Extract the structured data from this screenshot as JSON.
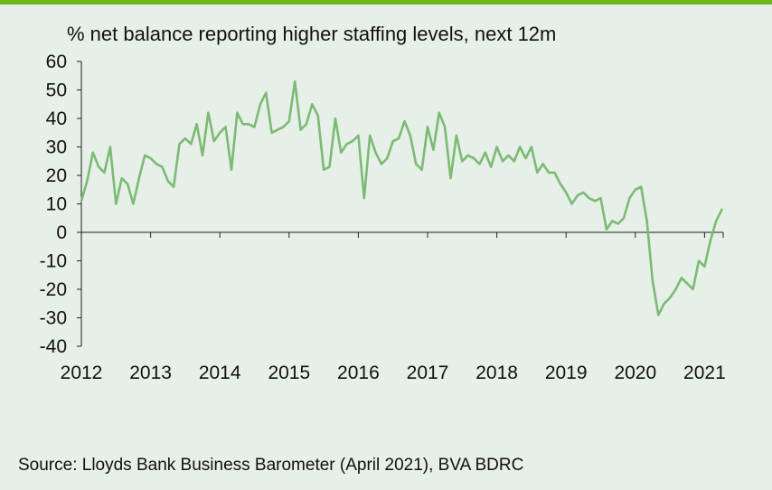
{
  "title": "% net balance reporting higher staffing levels, next 12m",
  "source": "Source: Lloyds Bank Business Barometer (April 2021), BVA BDRC",
  "colors": {
    "line": "#7cbb74",
    "accent_bar": "#6fb51d",
    "background": "#e6efe8",
    "axis": "#222222"
  },
  "chart_data": {
    "type": "line",
    "title": "% net balance reporting higher staffing levels, next 12m",
    "xlabel": "",
    "ylabel": "",
    "ylim": [
      -40,
      60
    ],
    "xlim": [
      "2012-01",
      "2021-05"
    ],
    "grid": false,
    "legend": "none",
    "y_ticks": [
      -40,
      -30,
      -20,
      -10,
      0,
      10,
      20,
      30,
      40,
      50,
      60
    ],
    "x_ticks": [
      "2012",
      "2013",
      "2014",
      "2015",
      "2016",
      "2017",
      "2018",
      "2019",
      "2020",
      "2021"
    ],
    "series": [
      {
        "x": [
          "2012-01",
          "2012-02",
          "2012-03",
          "2012-04",
          "2012-05",
          "2012-06",
          "2012-07",
          "2012-08",
          "2012-09",
          "2012-10",
          "2012-11",
          "2012-12",
          "2013-01",
          "2013-02",
          "2013-03",
          "2013-04",
          "2013-05",
          "2013-06",
          "2013-07",
          "2013-08",
          "2013-09",
          "2013-10",
          "2013-11",
          "2013-12",
          "2014-01",
          "2014-02",
          "2014-03",
          "2014-04",
          "2014-05",
          "2014-06",
          "2014-07",
          "2014-08",
          "2014-09",
          "2014-10",
          "2014-11",
          "2014-12",
          "2015-01",
          "2015-02",
          "2015-03",
          "2015-04",
          "2015-05",
          "2015-06",
          "2015-07",
          "2015-08",
          "2015-09",
          "2015-10",
          "2015-11",
          "2015-12",
          "2016-01",
          "2016-02",
          "2016-03",
          "2016-04",
          "2016-05",
          "2016-06",
          "2016-07",
          "2016-08",
          "2016-09",
          "2016-10",
          "2016-11",
          "2016-12",
          "2017-01",
          "2017-02",
          "2017-03",
          "2017-04",
          "2017-05",
          "2017-06",
          "2017-07",
          "2017-08",
          "2017-09",
          "2017-10",
          "2017-11",
          "2017-12",
          "2018-01",
          "2018-02",
          "2018-03",
          "2018-04",
          "2018-05",
          "2018-06",
          "2018-07",
          "2018-08",
          "2018-09",
          "2018-10",
          "2018-11",
          "2018-12",
          "2019-01",
          "2019-02",
          "2019-03",
          "2019-04",
          "2019-05",
          "2019-06",
          "2019-07",
          "2019-08",
          "2019-09",
          "2019-10",
          "2019-11",
          "2019-12",
          "2020-01",
          "2020-02",
          "2020-03",
          "2020-04",
          "2020-05",
          "2020-06",
          "2020-07",
          "2020-08",
          "2020-09",
          "2020-10",
          "2020-11",
          "2020-12",
          "2021-01",
          "2021-02",
          "2021-03",
          "2021-04"
        ],
        "values": [
          11,
          18,
          28,
          23,
          21,
          30,
          10,
          19,
          17,
          10,
          19,
          27,
          26,
          24,
          23,
          18,
          16,
          31,
          33,
          31,
          38,
          27,
          42,
          32,
          35,
          37,
          22,
          42,
          38,
          38,
          37,
          45,
          49,
          35,
          36,
          37,
          39,
          53,
          36,
          38,
          45,
          41,
          22,
          23,
          40,
          28,
          31,
          32,
          34,
          12,
          34,
          28,
          24,
          26,
          32,
          33,
          39,
          34,
          24,
          22,
          37,
          29,
          42,
          37,
          19,
          34,
          25,
          27,
          26,
          24,
          28,
          23,
          30,
          25,
          27,
          25,
          30,
          26,
          30,
          21,
          24,
          21,
          21,
          17,
          14,
          10,
          13,
          14,
          12,
          11,
          12,
          1,
          4,
          3,
          5,
          12,
          15,
          16,
          4,
          -17,
          -29,
          -25,
          -23,
          -20,
          -16,
          -18,
          -20,
          -10,
          -12,
          -3,
          4,
          8
        ]
      }
    ]
  }
}
